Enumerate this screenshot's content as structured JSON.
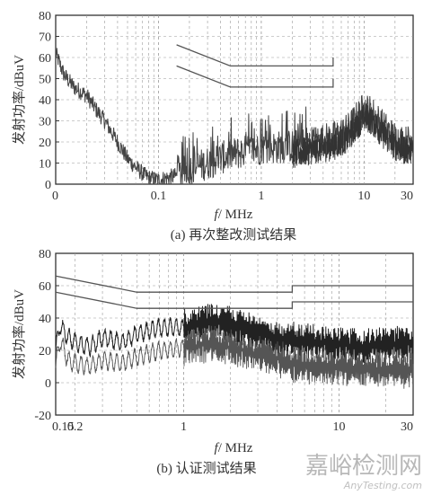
{
  "watermark": {
    "cn": "嘉峪检测网",
    "en": "AnyTesting.com"
  },
  "chart_data": [
    {
      "type": "line",
      "caption": "(a) 再次整改测试结果",
      "xlabel_italic": "f",
      "xlabel_rest": "/ MHz",
      "ylabel": "发射功率/dBuV",
      "xscale": "log",
      "xlim": [
        0.01,
        30
      ],
      "ylim": [
        0,
        80
      ],
      "grid": "dashed",
      "x_ticks": [
        {
          "v": 0.01,
          "label": "0"
        },
        {
          "v": 0.1,
          "label": "0.1"
        },
        {
          "v": 1,
          "label": "1"
        },
        {
          "v": 10,
          "label": "10"
        },
        {
          "v": 30,
          "label": "30"
        }
      ],
      "y_ticks": [
        0,
        10,
        20,
        30,
        40,
        50,
        60,
        70,
        80
      ],
      "limit_lines": [
        {
          "x": [
            0.15,
            0.5,
            5,
            5
          ],
          "y": [
            66,
            56,
            56,
            60
          ]
        },
        {
          "x": [
            0.15,
            0.5,
            5,
            5
          ],
          "y": [
            56,
            46,
            46,
            50
          ]
        }
      ],
      "envelope": {
        "x": [
          0.01,
          0.012,
          0.015,
          0.02,
          0.025,
          0.03,
          0.04,
          0.05,
          0.06,
          0.07,
          0.08,
          0.1,
          0.15,
          0.2,
          0.3,
          0.5,
          0.8,
          1,
          2,
          3,
          5,
          7,
          8,
          10,
          12,
          15,
          20,
          25,
          30
        ],
        "y": [
          62,
          52,
          46,
          42,
          35,
          30,
          20,
          12,
          8,
          5,
          3,
          2,
          4,
          7,
          10,
          14,
          16,
          17,
          18,
          20,
          22,
          26,
          30,
          36,
          34,
          28,
          22,
          20,
          21
        ]
      }
    },
    {
      "type": "line",
      "caption": "(b) 认证测试结果",
      "xlabel_italic": "f",
      "xlabel_rest": "/ MHz",
      "ylabel": "发射功率/dBuV",
      "xscale": "log",
      "xlim": [
        0.15,
        30
      ],
      "ylim": [
        -20,
        80
      ],
      "grid": "dashed",
      "x_ticks": [
        {
          "v": 0.15,
          "label": "0.15"
        },
        {
          "v": 0.2,
          "label": "0.2"
        },
        {
          "v": 1,
          "label": "1"
        },
        {
          "v": 10,
          "label": "10"
        },
        {
          "v": 30,
          "label": "30"
        }
      ],
      "y_ticks": [
        -20,
        0,
        20,
        40,
        60,
        80
      ],
      "limit_lines": [
        {
          "x": [
            0.15,
            0.5,
            5,
            5,
            30
          ],
          "y": [
            66,
            56,
            56,
            60,
            60
          ]
        },
        {
          "x": [
            0.15,
            0.5,
            5,
            5,
            30
          ],
          "y": [
            56,
            46,
            46,
            50,
            50
          ]
        }
      ],
      "series": [
        {
          "x": [
            0.15,
            0.16,
            0.18,
            0.2,
            0.25,
            0.3,
            0.4,
            0.5,
            0.7,
            1,
            1.5,
            2,
            3,
            5,
            7,
            10,
            15,
            20,
            30
          ],
          "y": [
            20,
            36,
            28,
            25,
            22,
            28,
            25,
            30,
            34,
            34,
            38,
            36,
            30,
            26,
            25,
            24,
            22,
            24,
            24
          ]
        },
        {
          "x": [
            0.15,
            0.16,
            0.18,
            0.2,
            0.25,
            0.3,
            0.4,
            0.5,
            0.7,
            1,
            1.5,
            2,
            3,
            5,
            7,
            10,
            15,
            20,
            30
          ],
          "y": [
            10,
            26,
            14,
            12,
            10,
            14,
            12,
            16,
            20,
            22,
            24,
            22,
            18,
            12,
            10,
            10,
            8,
            8,
            8
          ]
        }
      ]
    }
  ]
}
